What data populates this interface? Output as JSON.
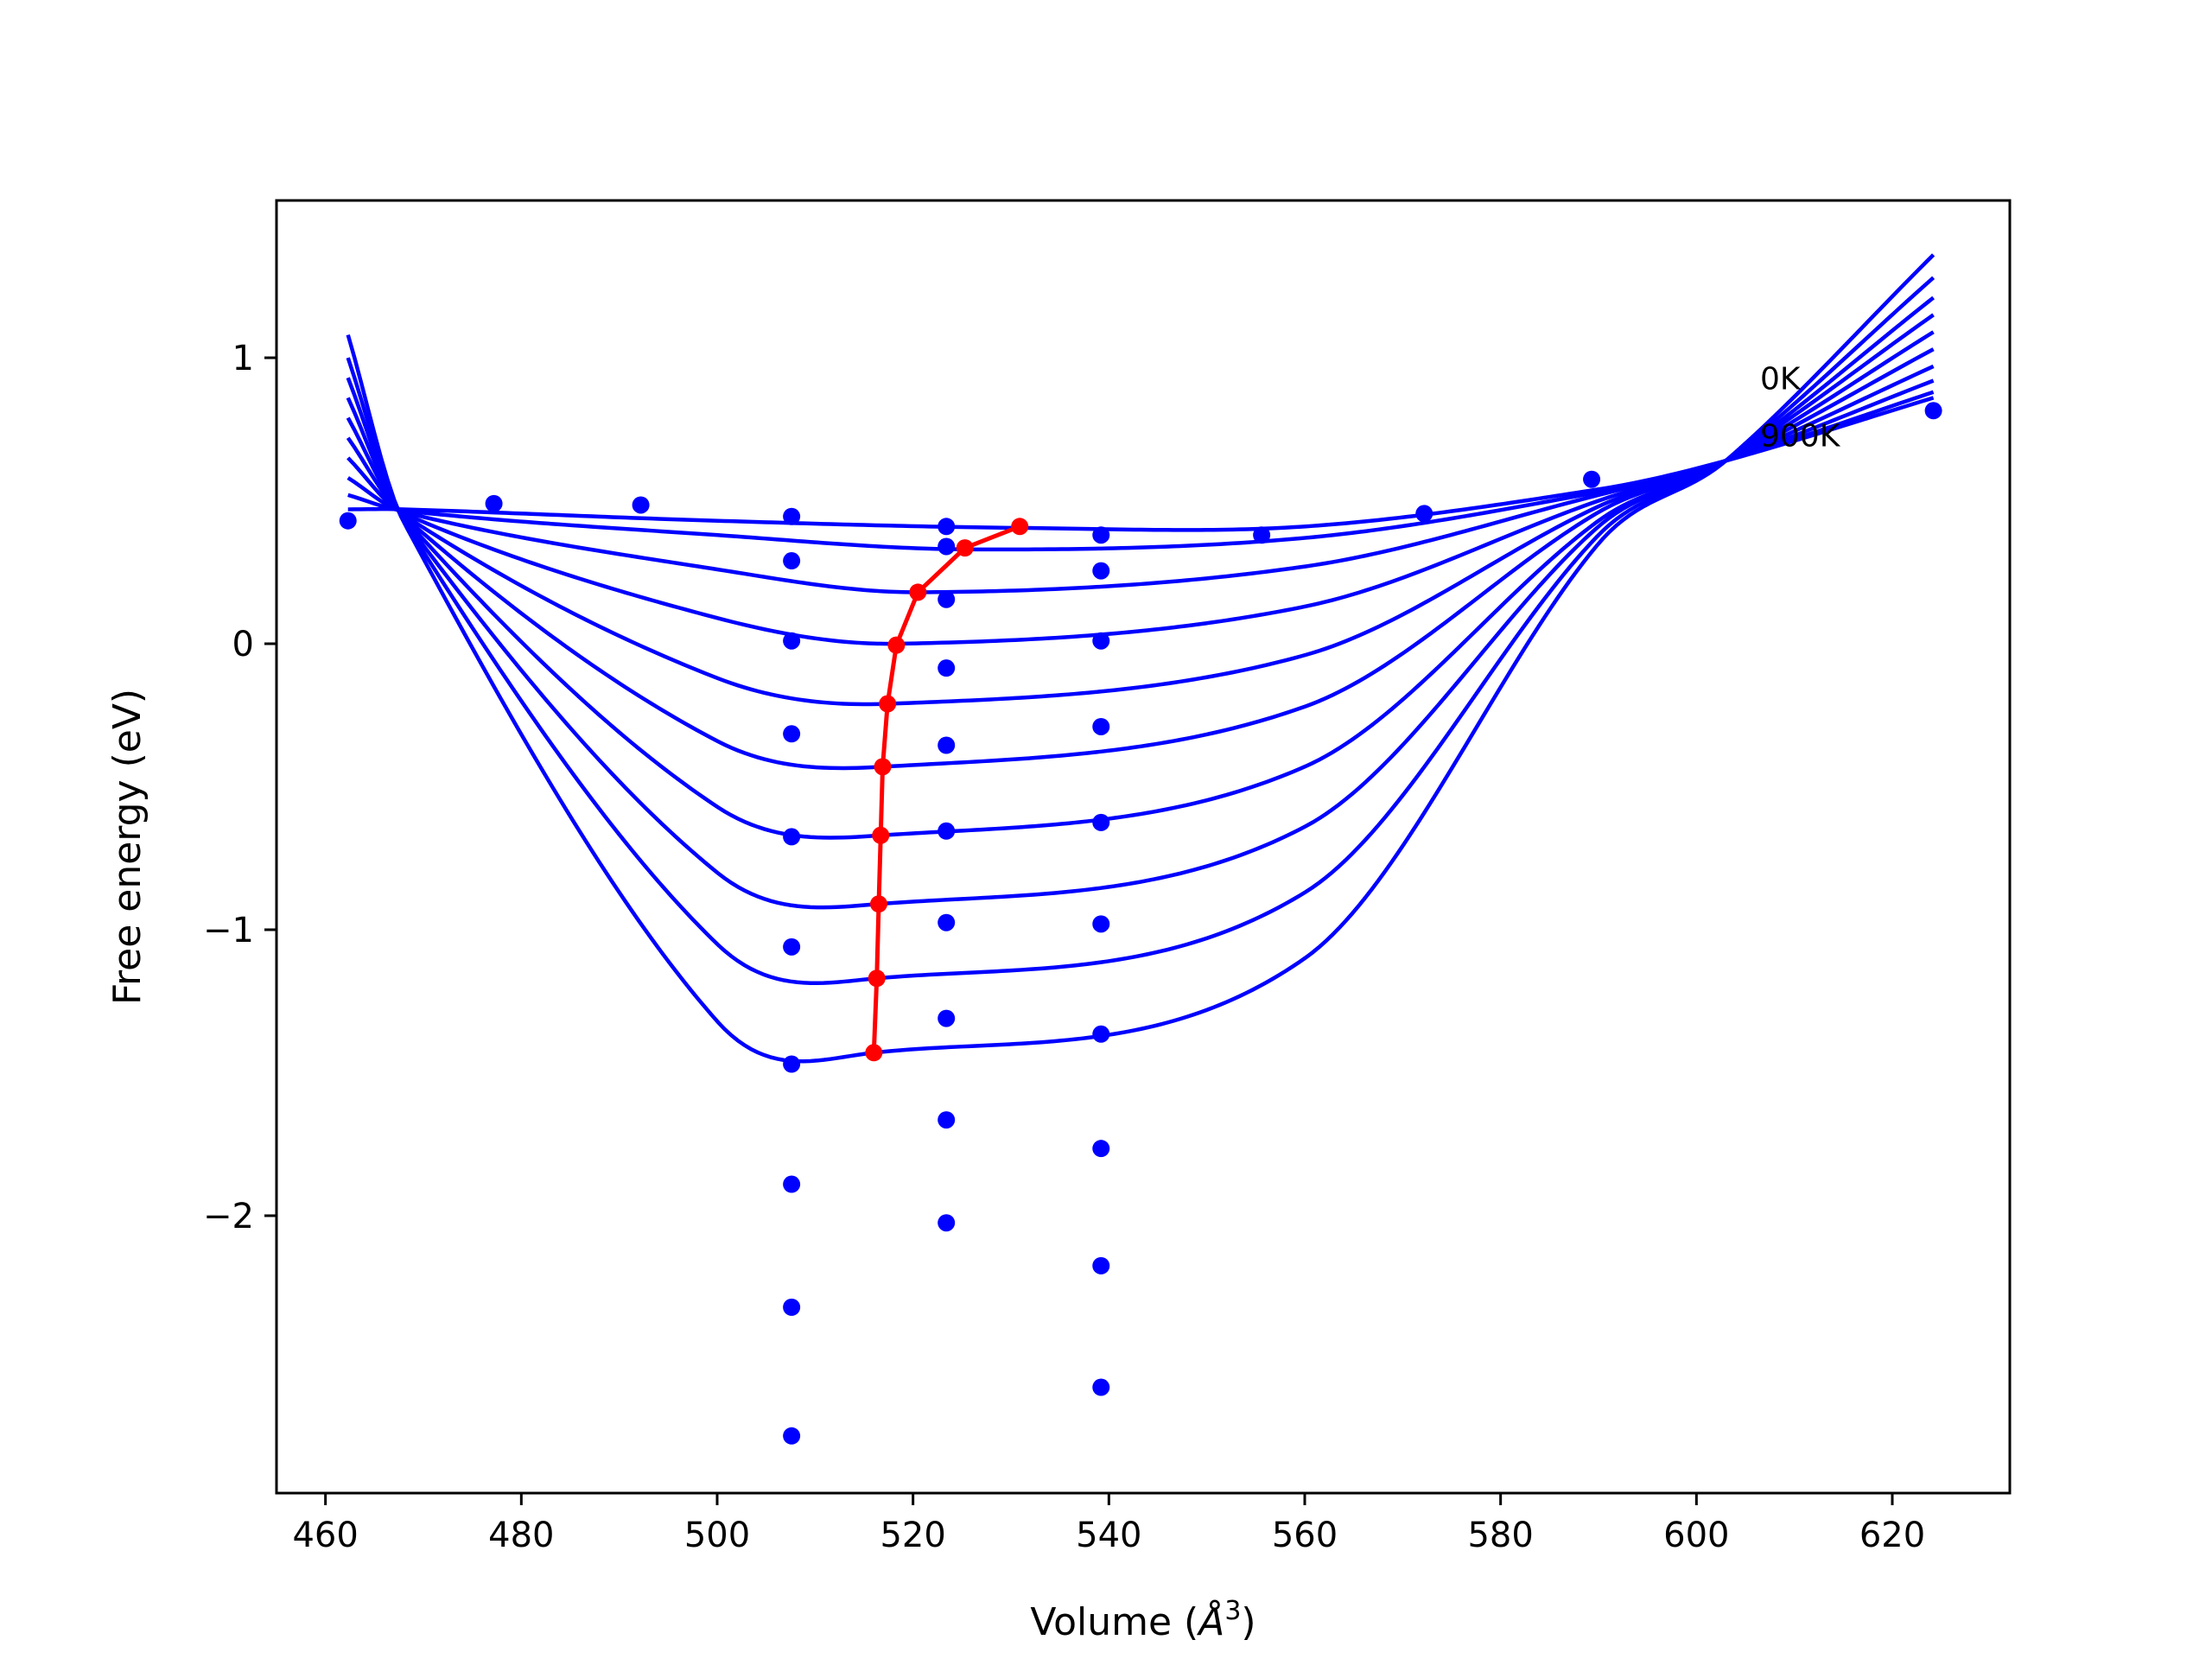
{
  "chart_data": {
    "type": "line",
    "title": "",
    "xlabel": "Volume (",
    "xlabel_symbol": "Å",
    "xlabel_exp": "3",
    "xlabel_close": ")",
    "ylabel": "Free energy (eV)",
    "xlim": [
      455,
      632
    ],
    "ylim": [
      -2.97,
      1.55
    ],
    "x_ticks": [
      460,
      480,
      500,
      520,
      540,
      560,
      580,
      600,
      620
    ],
    "x_tick_labels": [
      "460",
      "480",
      "500",
      "520",
      "540",
      "560",
      "580",
      "600",
      "620"
    ],
    "y_ticks": [
      -2,
      -1,
      0,
      1
    ],
    "y_tick_labels": [
      "−2",
      "−1",
      "0",
      "1"
    ],
    "grid": false,
    "colors": {
      "curves": "#0000ff",
      "minima": "#ff0000"
    },
    "annotations": [
      {
        "text": "0K",
        "x": 606.5,
        "y": 0.89
      },
      {
        "text": "900K",
        "x": 606.5,
        "y": 0.69
      }
    ],
    "fit_curves": {
      "x_range": [
        462.3,
        624.2
      ],
      "curves": [
        {
          "x": [
            462.3,
            468.0,
            500.0,
            531.0,
            560.0,
            590.0,
            603.0,
            624.2
          ],
          "y": [
            0.47,
            0.47,
            0.43,
            0.405,
            0.41,
            0.54,
            0.64,
            0.86
          ]
        },
        {
          "x": [
            462.3,
            468.0,
            500.0,
            525.5,
            560.0,
            590.0,
            603.0,
            624.2
          ],
          "y": [
            0.52,
            0.465,
            0.38,
            0.33,
            0.37,
            0.53,
            0.64,
            0.88
          ]
        },
        {
          "x": [
            462.3,
            468.0,
            500.0,
            520.5,
            560.0,
            590.0,
            603.0,
            624.2
          ],
          "y": [
            0.58,
            0.46,
            0.26,
            0.18,
            0.27,
            0.52,
            0.64,
            0.92
          ]
        },
        {
          "x": [
            462.3,
            468.0,
            500.0,
            518.5,
            560.0,
            590.0,
            603.0,
            624.2
          ],
          "y": [
            0.65,
            0.455,
            0.09,
            0.0,
            0.13,
            0.5,
            0.64,
            0.97
          ]
        },
        {
          "x": [
            462.3,
            468.0,
            500.0,
            517.5,
            560.0,
            590.0,
            603.0,
            624.2
          ],
          "y": [
            0.72,
            0.45,
            -0.12,
            -0.21,
            -0.04,
            0.48,
            0.64,
            1.03
          ]
        },
        {
          "x": [
            462.3,
            468.0,
            500.0,
            517.0,
            560.0,
            590.0,
            603.0,
            624.2
          ],
          "y": [
            0.79,
            0.445,
            -0.34,
            -0.43,
            -0.22,
            0.46,
            0.64,
            1.09
          ]
        },
        {
          "x": [
            462.3,
            468.0,
            500.0,
            516.8,
            560.0,
            590.0,
            603.0,
            624.2
          ],
          "y": [
            0.86,
            0.44,
            -0.57,
            -0.67,
            -0.43,
            0.43,
            0.64,
            1.15
          ]
        },
        {
          "x": [
            462.3,
            468.0,
            500.0,
            516.5,
            560.0,
            590.0,
            603.0,
            624.2
          ],
          "y": [
            0.93,
            0.435,
            -0.8,
            -0.91,
            -0.64,
            0.41,
            0.64,
            1.21
          ]
        },
        {
          "x": [
            462.3,
            468.0,
            500.0,
            516.3,
            560.0,
            590.0,
            603.0,
            624.2
          ],
          "y": [
            1.0,
            0.43,
            -1.05,
            -1.17,
            -0.87,
            0.38,
            0.64,
            1.28
          ]
        },
        {
          "x": [
            462.3,
            468.0,
            500.0,
            516.0,
            560.0,
            590.0,
            603.0,
            624.2
          ],
          "y": [
            1.08,
            0.425,
            -1.32,
            -1.43,
            -1.1,
            0.35,
            0.64,
            1.36
          ]
        }
      ]
    },
    "scatter_points": [
      {
        "x": 462.3,
        "y": 0.43
      },
      {
        "x": 477.2,
        "y": 0.49
      },
      {
        "x": 492.2,
        "y": 0.485
      },
      {
        "x": 507.6,
        "y": 0.445
      },
      {
        "x": 507.6,
        "y": 0.29
      },
      {
        "x": 507.6,
        "y": 0.01
      },
      {
        "x": 507.6,
        "y": -0.315
      },
      {
        "x": 507.6,
        "y": -0.675
      },
      {
        "x": 507.6,
        "y": -1.06
      },
      {
        "x": 507.6,
        "y": -1.47
      },
      {
        "x": 507.6,
        "y": -1.89
      },
      {
        "x": 507.6,
        "y": -2.32
      },
      {
        "x": 507.6,
        "y": -2.77
      },
      {
        "x": 523.4,
        "y": 0.41
      },
      {
        "x": 523.4,
        "y": 0.34
      },
      {
        "x": 523.4,
        "y": 0.155
      },
      {
        "x": 523.4,
        "y": -0.085
      },
      {
        "x": 523.4,
        "y": -0.355
      },
      {
        "x": 523.4,
        "y": -0.655
      },
      {
        "x": 523.4,
        "y": -0.975
      },
      {
        "x": 523.4,
        "y": -1.31
      },
      {
        "x": 523.4,
        "y": -1.665
      },
      {
        "x": 523.4,
        "y": -2.025
      },
      {
        "x": 539.2,
        "y": 0.38
      },
      {
        "x": 539.2,
        "y": 0.255
      },
      {
        "x": 539.2,
        "y": 0.01
      },
      {
        "x": 539.2,
        "y": -0.29
      },
      {
        "x": 539.2,
        "y": -0.625
      },
      {
        "x": 539.2,
        "y": -0.98
      },
      {
        "x": 539.2,
        "y": -1.365
      },
      {
        "x": 539.2,
        "y": -1.765
      },
      {
        "x": 539.2,
        "y": -2.175
      },
      {
        "x": 539.2,
        "y": -2.6
      },
      {
        "x": 555.6,
        "y": 0.38
      },
      {
        "x": 572.2,
        "y": 0.455
      },
      {
        "x": 589.3,
        "y": 0.575
      },
      {
        "x": 624.2,
        "y": 0.815
      }
    ],
    "minima_line": {
      "x": [
        530.9,
        525.3,
        520.5,
        518.3,
        517.4,
        516.9,
        516.7,
        516.5,
        516.3,
        516.0
      ],
      "y": [
        0.41,
        0.335,
        0.18,
        -0.005,
        -0.21,
        -0.43,
        -0.67,
        -0.91,
        -1.17,
        -1.43
      ]
    }
  }
}
